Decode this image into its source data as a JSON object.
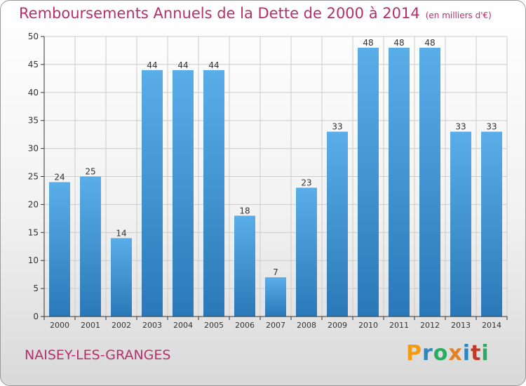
{
  "colors": {
    "title": "#b5306b",
    "bar_top": "#5aaee8",
    "bar_bottom": "#2a78b8",
    "axis": "#333333",
    "grid": "#cccccc"
  },
  "chart_data": {
    "type": "bar",
    "title": "Remboursements Annuels de la Dette de 2000 à 2014",
    "unit_label": "(en milliers d'€)",
    "xlabel": "",
    "ylabel": "",
    "categories": [
      "2000",
      "2001",
      "2002",
      "2003",
      "2004",
      "2005",
      "2006",
      "2007",
      "2008",
      "2009",
      "2010",
      "2011",
      "2012",
      "2013",
      "2014"
    ],
    "values": [
      24,
      25,
      14,
      44,
      44,
      44,
      18,
      7,
      23,
      33,
      48,
      48,
      48,
      33,
      33
    ],
    "ylim": [
      0,
      50
    ],
    "yticks": [
      0,
      5,
      10,
      15,
      20,
      25,
      30,
      35,
      40,
      45,
      50
    ],
    "grid": true,
    "data_labels": true
  },
  "footer": {
    "commune": "NAISEY-LES-GRANGES",
    "logo_text": "Proxiti",
    "logo_icon": "proxiti-logo"
  }
}
